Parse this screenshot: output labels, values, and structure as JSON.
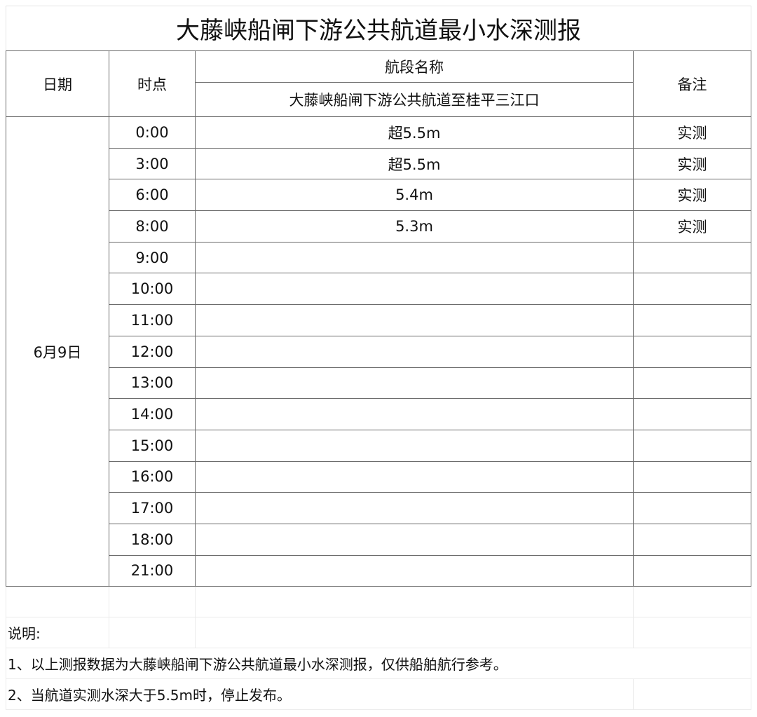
{
  "title": "大藤峡船闸下游公共航道最小水深测报",
  "header": {
    "date": "日期",
    "time": "时点",
    "segment_label": "航段名称",
    "segment_name": "大藤峡船闸下游公共航道至桂平三江口",
    "remark": "备注"
  },
  "date_value": "6月9日",
  "rows": [
    {
      "time": "0:00",
      "depth": "超5.5m",
      "note": "实测"
    },
    {
      "time": "3:00",
      "depth": "超5.5m",
      "note": "实测"
    },
    {
      "time": "6:00",
      "depth": "5.4m",
      "note": "实测"
    },
    {
      "time": "8:00",
      "depth": "5.3m",
      "note": "实测"
    },
    {
      "time": "9:00",
      "depth": "",
      "note": ""
    },
    {
      "time": "10:00",
      "depth": "",
      "note": ""
    },
    {
      "time": "11:00",
      "depth": "",
      "note": ""
    },
    {
      "time": "12:00",
      "depth": "",
      "note": ""
    },
    {
      "time": "13:00",
      "depth": "",
      "note": ""
    },
    {
      "time": "14:00",
      "depth": "",
      "note": ""
    },
    {
      "time": "15:00",
      "depth": "",
      "note": ""
    },
    {
      "time": "16:00",
      "depth": "",
      "note": ""
    },
    {
      "time": "17:00",
      "depth": "",
      "note": ""
    },
    {
      "time": "18:00",
      "depth": "",
      "note": ""
    },
    {
      "time": "21:00",
      "depth": "",
      "note": ""
    }
  ],
  "notes": {
    "heading": "说明:",
    "items": [
      "1、以上测报数据为大藤峡船闸下游公共航道最小水深测报，仅供船舶航行参考。",
      "2、当航道实测水深大于5.5m时，停止发布。"
    ]
  }
}
